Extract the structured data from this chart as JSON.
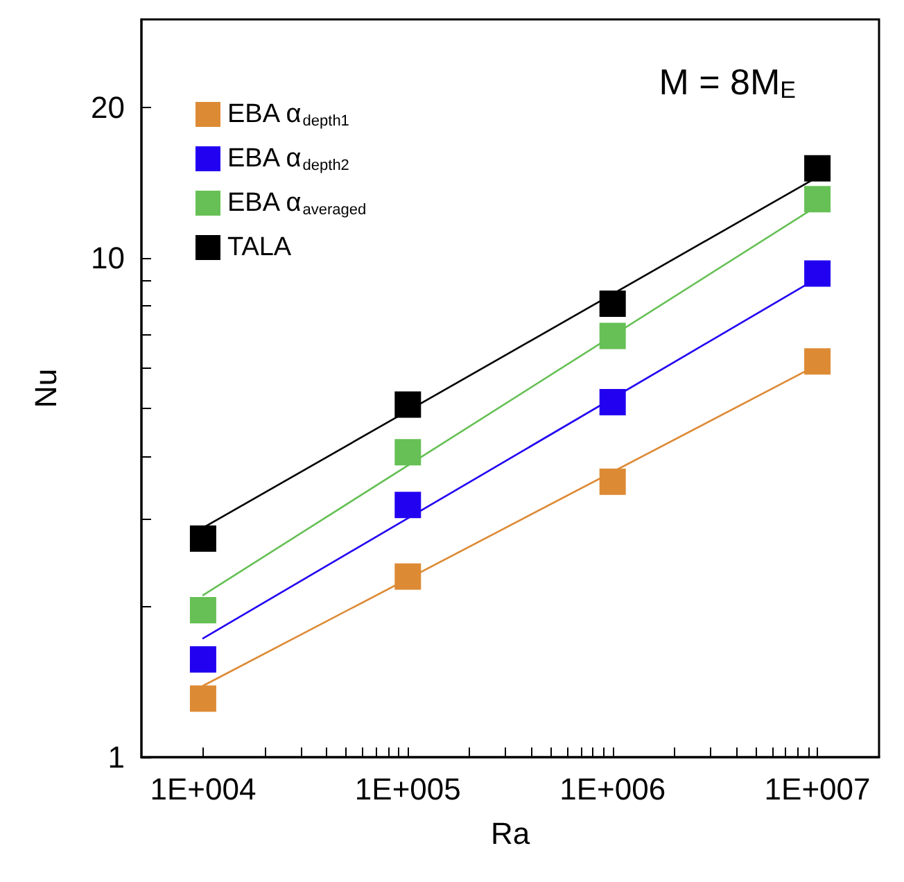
{
  "chart_data": {
    "type": "scatter",
    "xlabel": "Ra",
    "ylabel": "Nu",
    "log": "xy",
    "grid": false,
    "legend": "top left",
    "marker": "square",
    "annotations": [
      "M = 8M$_{E}$"
    ],
    "xlim": [
      5000,
      20000000
    ],
    "ylim": [
      1,
      30
    ],
    "xticks": [
      {
        "value": 10000,
        "label": "1E+004"
      },
      {
        "value": 20000,
        "label": null
      },
      {
        "value": 30000,
        "label": null
      },
      {
        "value": 40000,
        "label": null
      },
      {
        "value": 50000,
        "label": null
      },
      {
        "value": 60000,
        "label": null
      },
      {
        "value": 70000,
        "label": null
      },
      {
        "value": 80000,
        "label": null
      },
      {
        "value": 90000,
        "label": null
      },
      {
        "value": 100000,
        "label": "1E+005"
      },
      {
        "value": 200000,
        "label": null
      },
      {
        "value": 300000,
        "label": null
      },
      {
        "value": 400000,
        "label": null
      },
      {
        "value": 500000,
        "label": null
      },
      {
        "value": 600000,
        "label": null
      },
      {
        "value": 700000,
        "label": null
      },
      {
        "value": 800000,
        "label": null
      },
      {
        "value": 900000,
        "label": null
      },
      {
        "value": 1000000,
        "label": "1E+006"
      },
      {
        "value": 2000000,
        "label": null
      },
      {
        "value": 3000000,
        "label": null
      },
      {
        "value": 4000000,
        "label": null
      },
      {
        "value": 5000000,
        "label": null
      },
      {
        "value": 6000000,
        "label": null
      },
      {
        "value": 7000000,
        "label": null
      },
      {
        "value": 8000000,
        "label": null
      },
      {
        "value": 9000000,
        "label": null
      },
      {
        "value": 10000000,
        "label": "1E+007"
      }
    ],
    "yticks": [
      1,
      {
        "value": 2,
        "label": null
      },
      {
        "value": 3,
        "label": null
      },
      {
        "value": 4,
        "label": null
      },
      {
        "value": 5,
        "label": null
      },
      {
        "value": 6,
        "label": null
      },
      {
        "value": 7,
        "label": null
      },
      {
        "value": 8,
        "label": null
      },
      {
        "value": 9,
        "label": null
      },
      10,
      20
    ],
    "series": [
      {
        "name": "EBA α$_{depth1}$",
        "color": "#dd8a35",
        "x": [
          10000,
          100000,
          1000000,
          10000000
        ],
        "values": [
          1.31,
          2.3,
          3.56,
          6.2
        ]
      },
      {
        "name": "EBA α$_{depth2}$",
        "color": "#2200f0",
        "x": [
          10000,
          100000,
          1000000,
          10000000
        ],
        "values": [
          1.57,
          3.2,
          5.14,
          9.3
        ]
      },
      {
        "name": "EBA α$_{averaged}$",
        "color": "#66c055",
        "x": [
          10000,
          100000,
          1000000,
          10000000
        ],
        "values": [
          1.97,
          4.08,
          6.97,
          13.1
        ]
      },
      {
        "name": "TALA",
        "color": "#000000",
        "x": [
          10000,
          100000,
          1000000,
          10000000
        ],
        "values": [
          2.74,
          5.08,
          8.09,
          15.1
        ]
      },
      {
        "color": "#dd8a35",
        "type": "line",
        "marker": "none",
        "x": [
          10000,
          10000000
        ],
        "values": [
          1.39,
          6.1
        ]
      },
      {
        "color": "#2200f0",
        "type": "line",
        "marker": "none",
        "x": [
          10000,
          10000000
        ],
        "values": [
          1.73,
          9.1
        ]
      },
      {
        "color": "#66c055",
        "type": "line",
        "marker": "none",
        "x": [
          10000,
          10000000
        ],
        "values": [
          2.11,
          12.7
        ]
      },
      {
        "color": "#000000",
        "type": "line",
        "marker": "none",
        "x": [
          10000,
          10000000
        ],
        "values": [
          2.88,
          14.5
        ]
      }
    ]
  }
}
